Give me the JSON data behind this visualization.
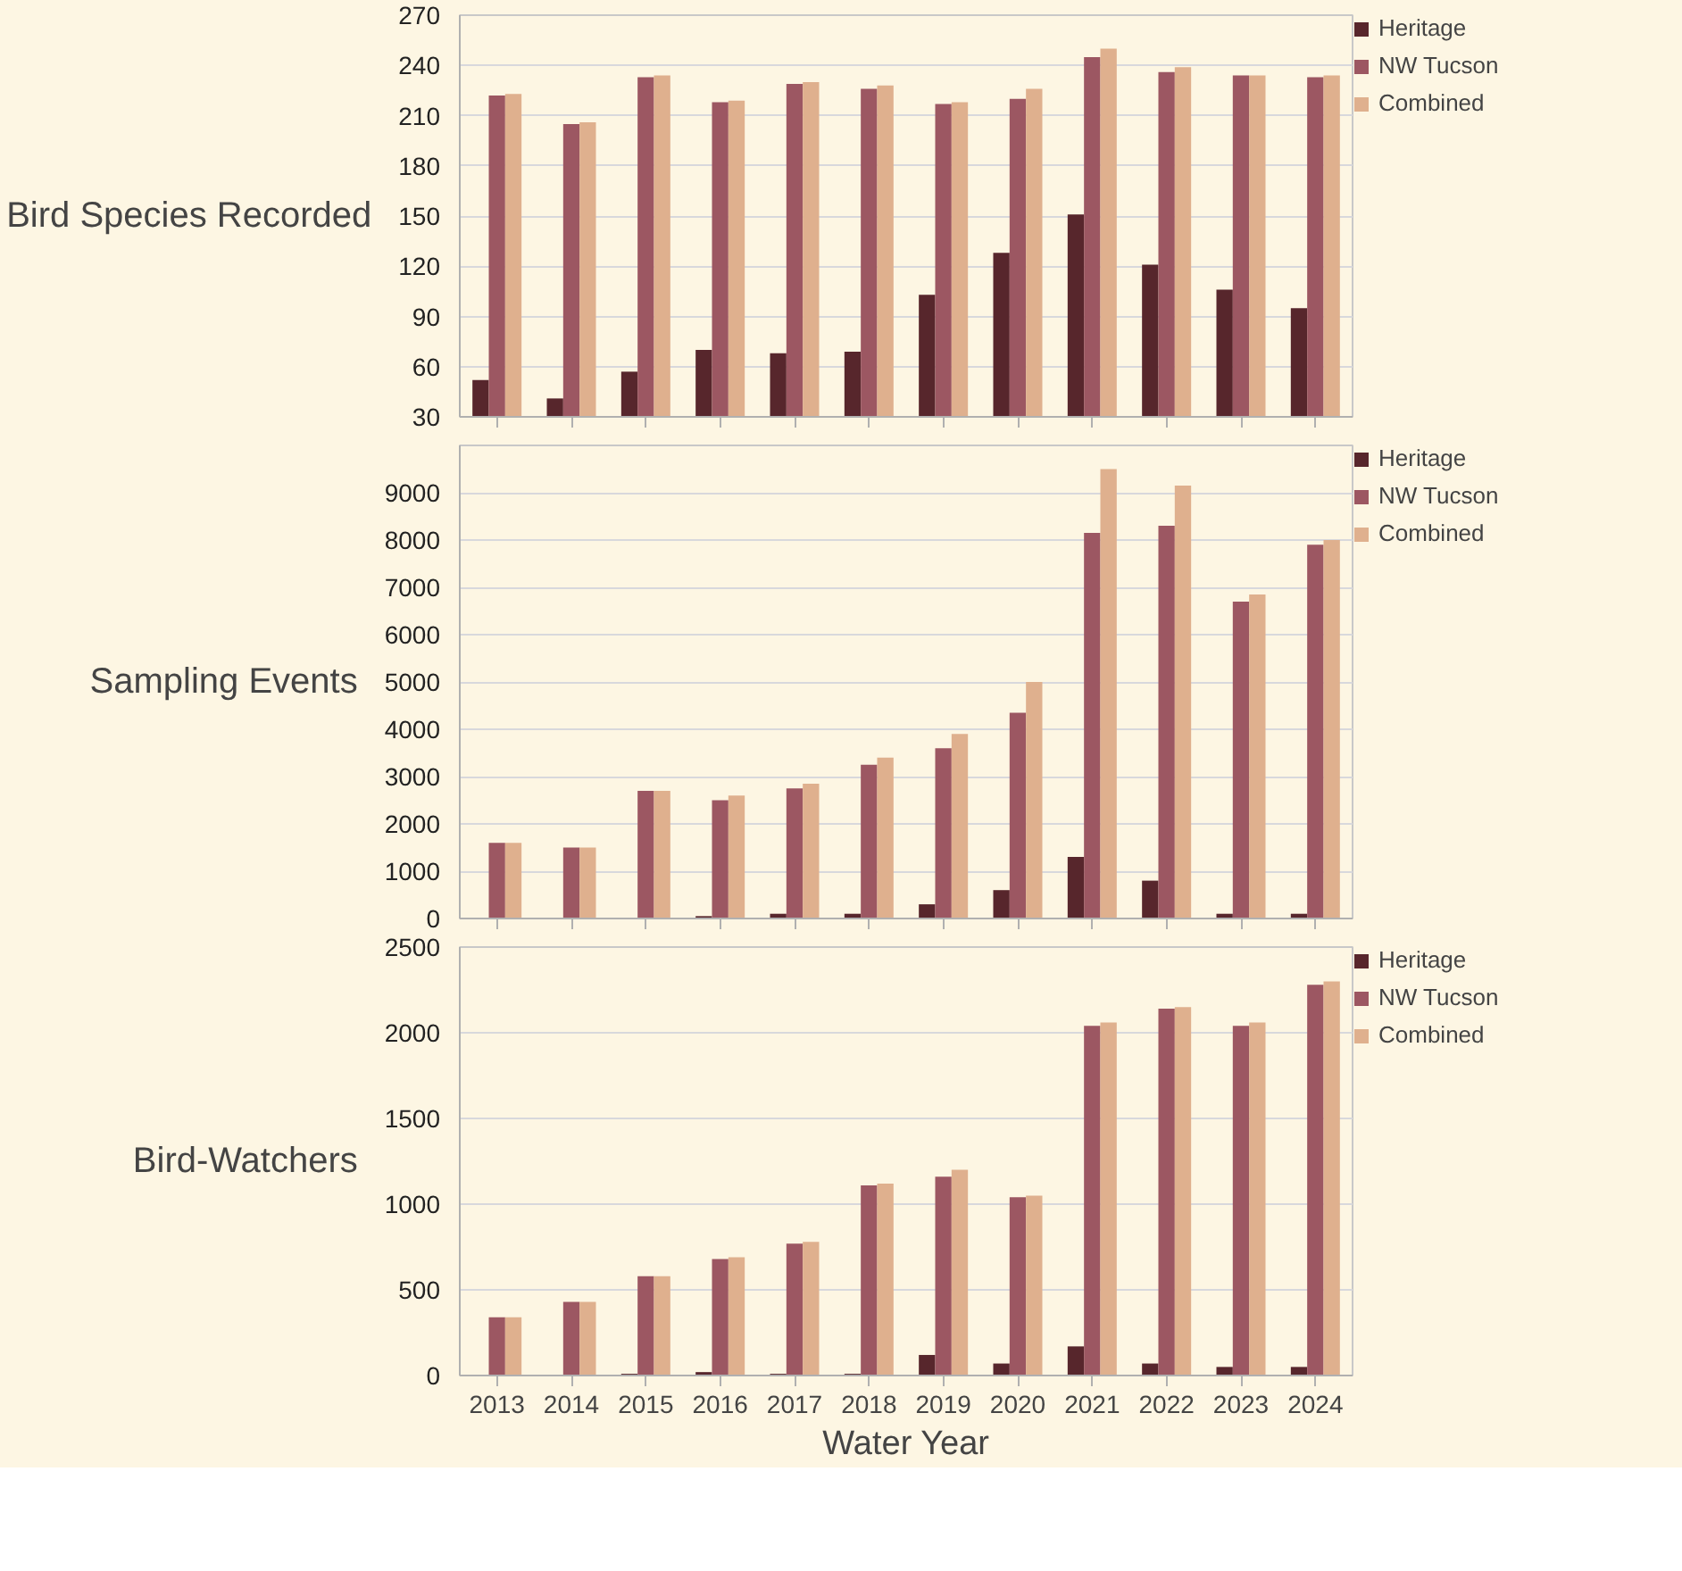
{
  "chart_data": [
    {
      "type": "bar",
      "ylabel": "Bird Species Recorded",
      "categories": [
        "2013",
        "2014",
        "2015",
        "2016",
        "2017",
        "2018",
        "2019",
        "2020",
        "2021",
        "2022",
        "2023",
        "2024"
      ],
      "ylim": [
        30,
        270
      ],
      "yticks": [
        30,
        60,
        90,
        120,
        150,
        180,
        210,
        240,
        270
      ],
      "grid": "y",
      "legend": "right",
      "tick_labels": "y",
      "series": [
        {
          "name": "Heritage",
          "color": "#57262c",
          "values": [
            52,
            41,
            57,
            70,
            68,
            69,
            103,
            128,
            151,
            121,
            106,
            95
          ]
        },
        {
          "name": "NW Tucson",
          "color": "#9c5762",
          "values": [
            222,
            205,
            233,
            218,
            229,
            226,
            217,
            220,
            245,
            236,
            234,
            233
          ]
        },
        {
          "name": "Combined",
          "color": "#dfb08e",
          "values": [
            223,
            206,
            234,
            219,
            230,
            228,
            218,
            226,
            250,
            239,
            234,
            234
          ]
        }
      ]
    },
    {
      "type": "bar",
      "ylabel": "Sampling Events",
      "categories": [
        "2013",
        "2014",
        "2015",
        "2016",
        "2017",
        "2018",
        "2019",
        "2020",
        "2021",
        "2022",
        "2023",
        "2024"
      ],
      "ylim": [
        0,
        10000
      ],
      "yticks": [
        0,
        1000,
        2000,
        3000,
        4000,
        5000,
        6000,
        7000,
        8000,
        9000
      ],
      "grid": "y",
      "legend": "right",
      "tick_labels": "y",
      "series": [
        {
          "name": "Heritage",
          "color": "#57262c",
          "values": [
            0,
            0,
            0,
            50,
            100,
            100,
            300,
            600,
            1300,
            800,
            100,
            100
          ]
        },
        {
          "name": "NW Tucson",
          "color": "#9c5762",
          "values": [
            1600,
            1500,
            2700,
            2500,
            2750,
            3250,
            3600,
            4350,
            8150,
            8300,
            6700,
            7900
          ]
        },
        {
          "name": "Combined",
          "color": "#dfb08e",
          "values": [
            1600,
            1500,
            2700,
            2600,
            2850,
            3400,
            3900,
            5000,
            9500,
            9150,
            6850,
            8000
          ]
        }
      ]
    },
    {
      "type": "bar",
      "ylabel": "Bird-Watchers",
      "xlabel": "Water Year",
      "categories": [
        "2013",
        "2014",
        "2015",
        "2016",
        "2017",
        "2018",
        "2019",
        "2020",
        "2021",
        "2022",
        "2023",
        "2024"
      ],
      "ylim": [
        0,
        2500
      ],
      "yticks": [
        0,
        500,
        1000,
        1500,
        2000,
        2500
      ],
      "grid": "y",
      "legend": "right",
      "series": [
        {
          "name": "Heritage",
          "color": "#57262c",
          "values": [
            0,
            0,
            10,
            20,
            10,
            10,
            120,
            70,
            170,
            70,
            50,
            50
          ]
        },
        {
          "name": "NW Tucson",
          "color": "#9c5762",
          "values": [
            340,
            430,
            580,
            680,
            770,
            1110,
            1160,
            1040,
            2040,
            2140,
            2040,
            2280
          ]
        },
        {
          "name": "Combined",
          "color": "#dfb08e",
          "values": [
            340,
            430,
            580,
            690,
            780,
            1120,
            1200,
            1050,
            2060,
            2150,
            2060,
            2300
          ]
        }
      ]
    }
  ]
}
